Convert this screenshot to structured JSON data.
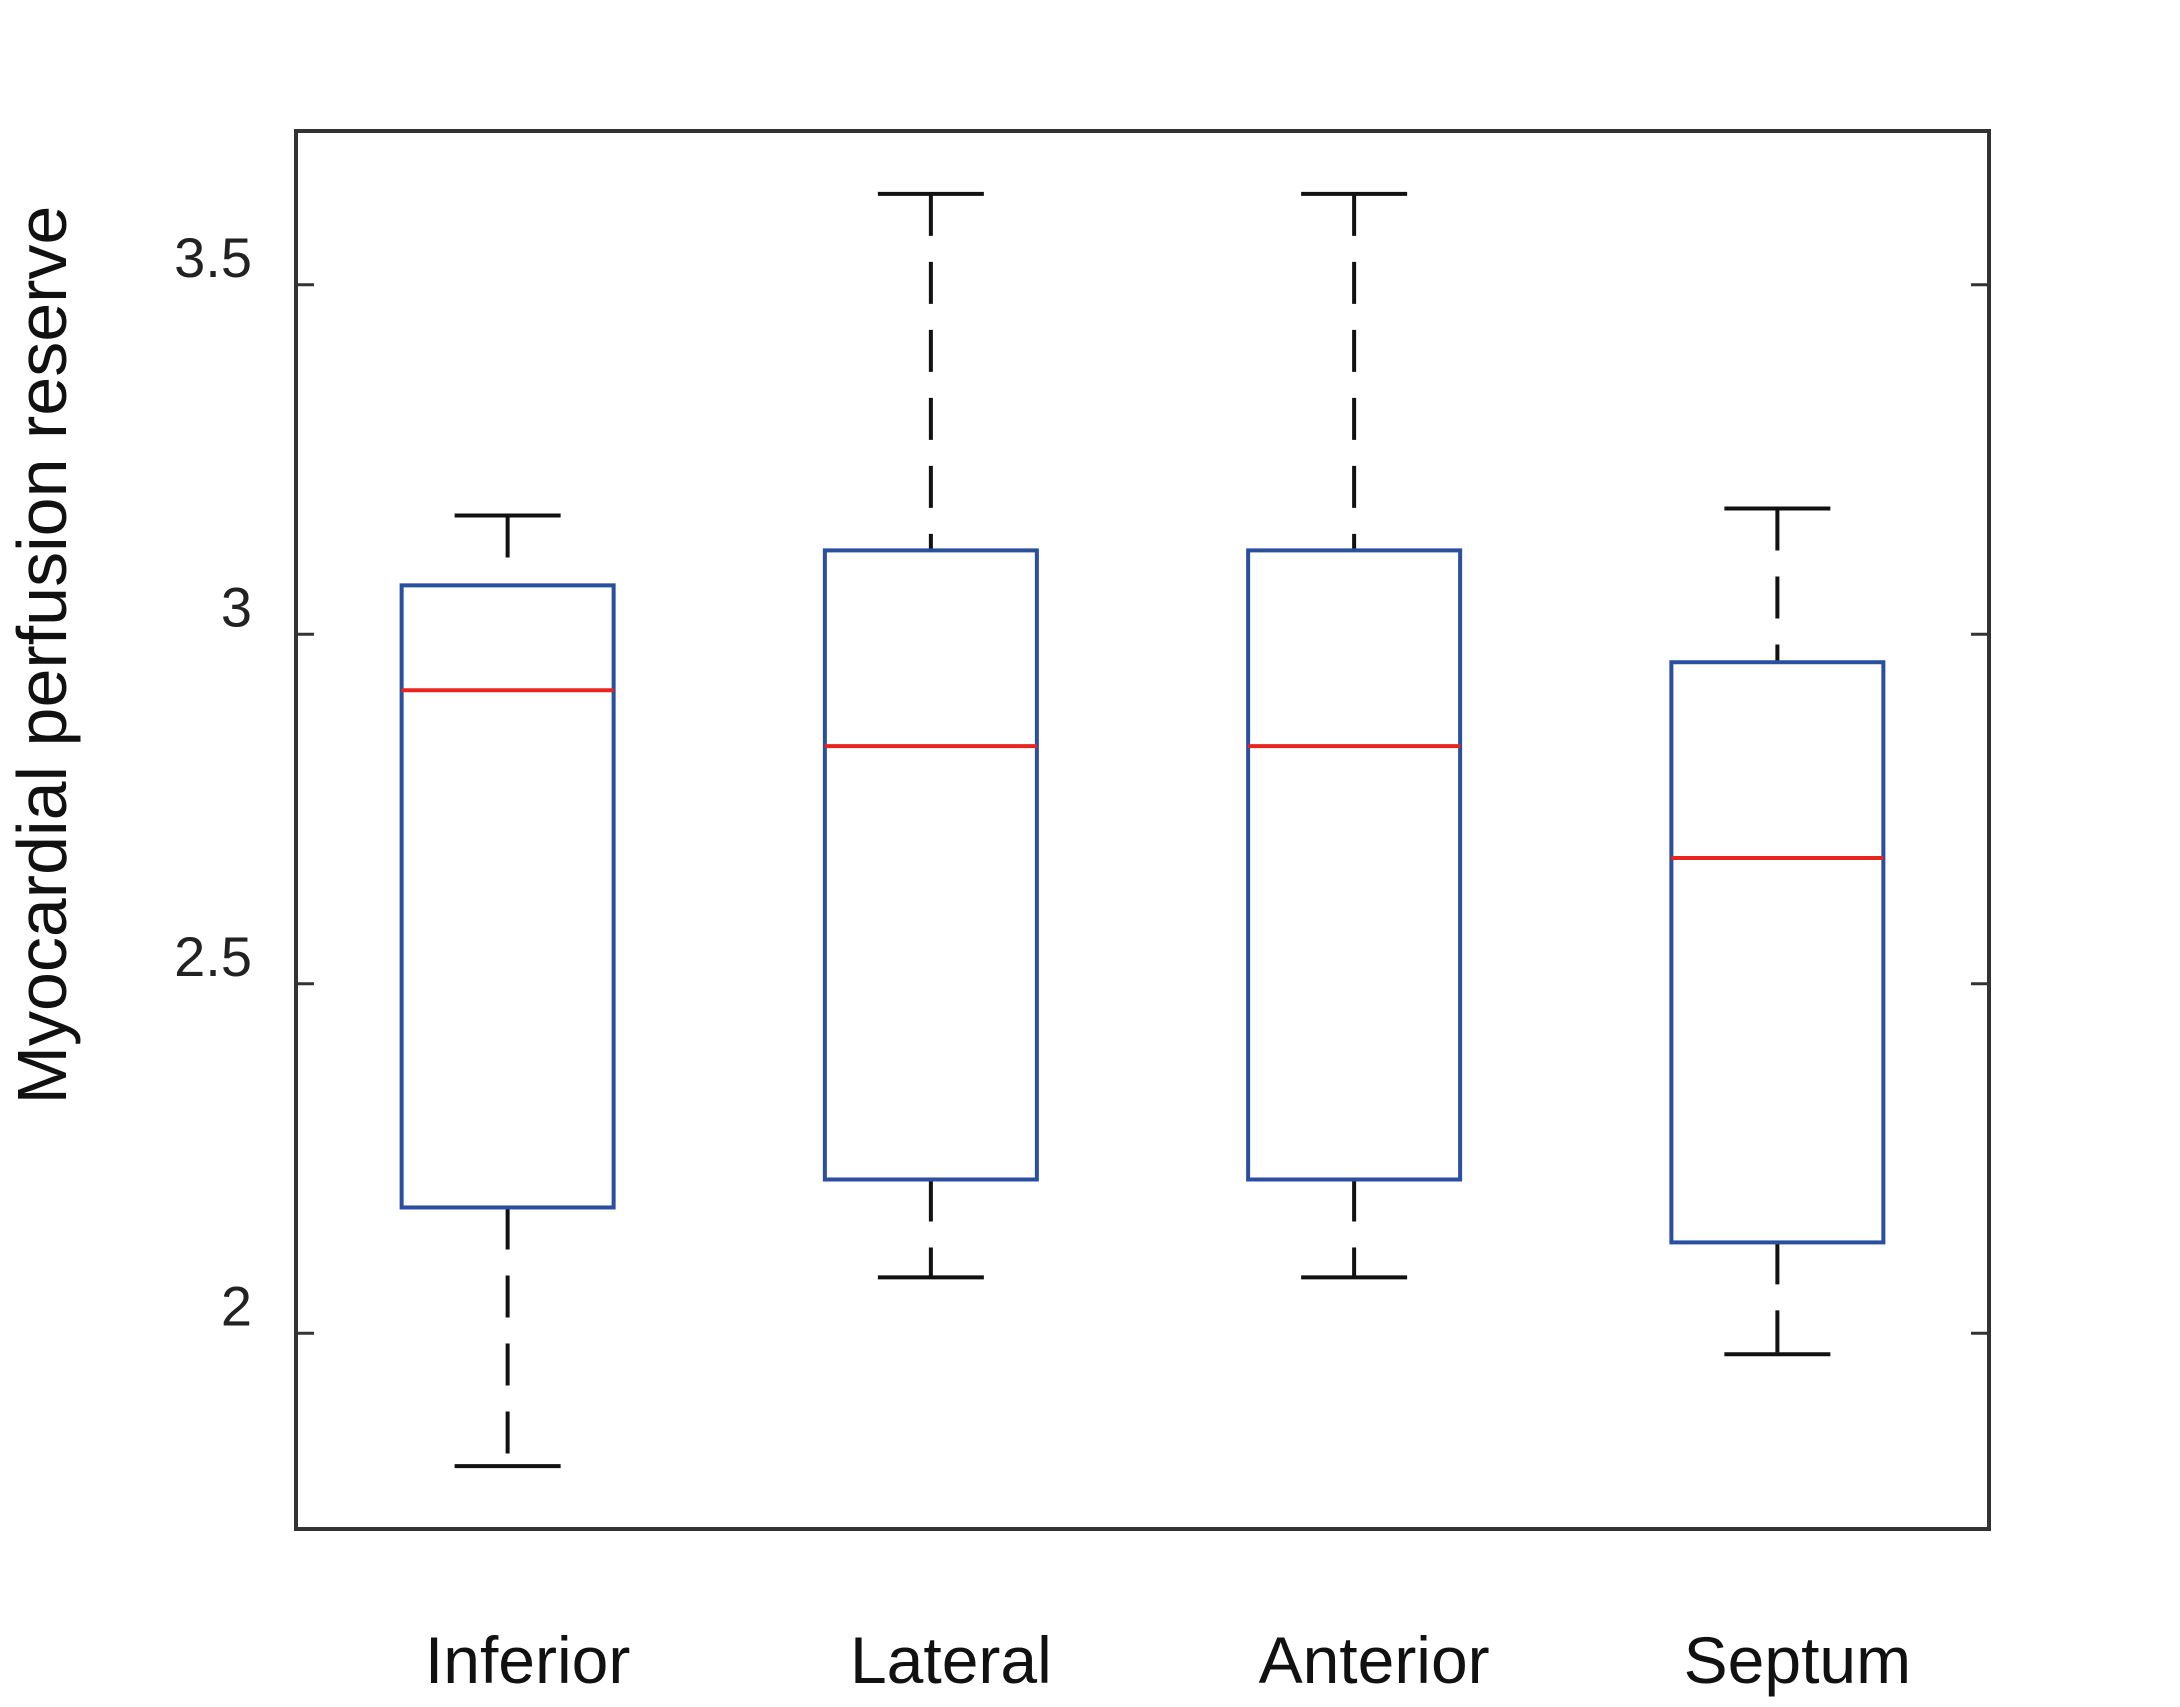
{
  "chart_data": {
    "type": "boxplot",
    "title": "",
    "xlabel": "",
    "ylabel": "Myocardial perfusion reserve",
    "categories": [
      "Inferior",
      "Lateral",
      "Anterior",
      "Septum"
    ],
    "boxes": [
      {
        "name": "Inferior",
        "whisker_low": 1.81,
        "q1": 2.18,
        "median": 2.92,
        "q3": 3.07,
        "whisker_high": 3.17
      },
      {
        "name": "Lateral",
        "whisker_low": 2.08,
        "q1": 2.22,
        "median": 2.84,
        "q3": 3.12,
        "whisker_high": 3.63
      },
      {
        "name": "Anterior",
        "whisker_low": 2.08,
        "q1": 2.22,
        "median": 2.84,
        "q3": 3.12,
        "whisker_high": 3.63
      },
      {
        "name": "Septum",
        "whisker_low": 1.97,
        "q1": 2.13,
        "median": 2.68,
        "q3": 2.96,
        "whisker_high": 3.18
      }
    ],
    "yticks": [
      2,
      2.5,
      3,
      3.5
    ],
    "ytick_labels": [
      "2",
      "2.5",
      "3",
      "3.5"
    ],
    "ylim": [
      1.72,
      3.72
    ],
    "grid": false,
    "colors": {
      "box": "#2a4ea0",
      "median": "#e8241e",
      "whisker": "#111111",
      "axes": "#333333"
    }
  }
}
